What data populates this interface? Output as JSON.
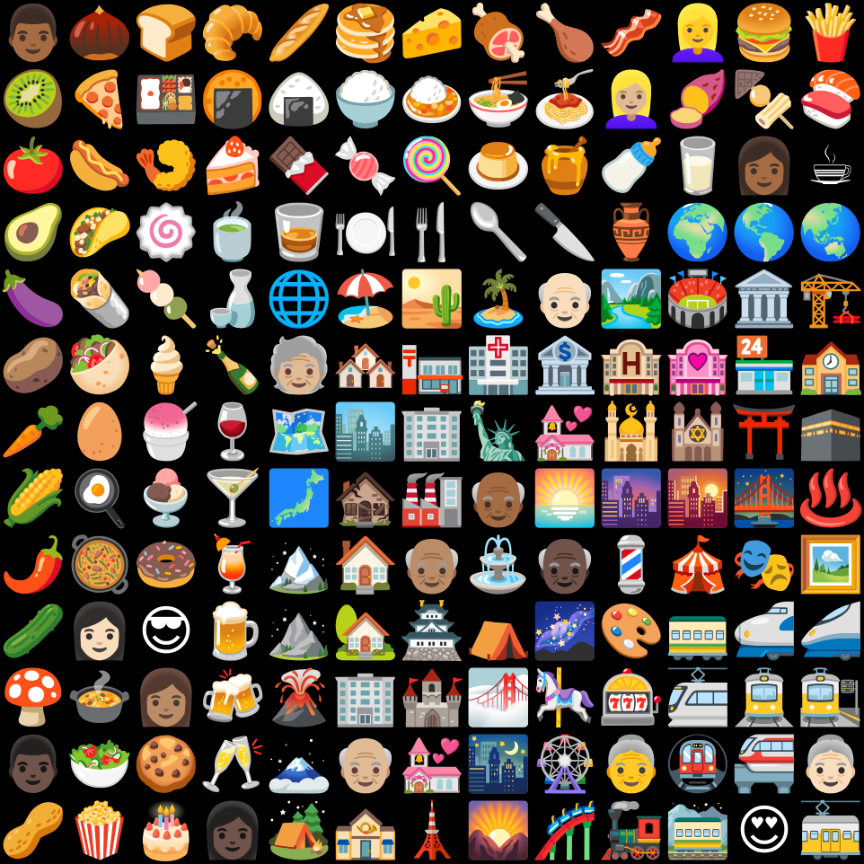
{
  "grid": {
    "columns": 13,
    "rows": 13,
    "background": "#000000",
    "cells": [
      {
        "icon": "man-medium-dark-skin-tone",
        "glyph": "👨🏾"
      },
      {
        "icon": "chestnut",
        "glyph": "🌰"
      },
      {
        "icon": "bread",
        "glyph": "🍞"
      },
      {
        "icon": "croissant",
        "glyph": "🥐"
      },
      {
        "icon": "baguette-bread",
        "glyph": "🥖"
      },
      {
        "icon": "pancakes",
        "glyph": "🥞"
      },
      {
        "icon": "cheese-wedge",
        "glyph": "🧀"
      },
      {
        "icon": "meat-on-bone",
        "glyph": "🍖"
      },
      {
        "icon": "poultry-leg",
        "glyph": "🍗"
      },
      {
        "icon": "bacon",
        "glyph": "🥓"
      },
      {
        "icon": "woman-blond-hair",
        "glyph": "👱‍♀️"
      },
      {
        "icon": "hamburger",
        "glyph": "🍔"
      },
      {
        "icon": "french-fries",
        "glyph": "🍟"
      },
      {
        "icon": "kiwi-fruit",
        "glyph": "🥝"
      },
      {
        "icon": "pizza",
        "glyph": "🍕"
      },
      {
        "icon": "bento-box",
        "glyph": "🍱"
      },
      {
        "icon": "rice-cracker",
        "glyph": "🍘"
      },
      {
        "icon": "rice-ball",
        "glyph": "🍙"
      },
      {
        "icon": "cooked-rice",
        "glyph": "🍚"
      },
      {
        "icon": "curry-rice",
        "glyph": "🍛"
      },
      {
        "icon": "steaming-bowl",
        "glyph": "🍜"
      },
      {
        "icon": "spaghetti",
        "glyph": "🍝"
      },
      {
        "icon": "person-blond-hair-light-skin-tone",
        "glyph": "👱🏼‍♀️"
      },
      {
        "icon": "roasted-sweet-potato",
        "glyph": "🍠"
      },
      {
        "icon": "oden",
        "glyph": "🍢"
      },
      {
        "icon": "sushi",
        "glyph": "🍣"
      },
      {
        "icon": "tomato",
        "glyph": "🍅"
      },
      {
        "icon": "hot-dog",
        "glyph": "🌭"
      },
      {
        "icon": "fried-shrimp",
        "glyph": "🍤"
      },
      {
        "icon": "shortcake",
        "glyph": "🍰"
      },
      {
        "icon": "chocolate-bar",
        "glyph": "🍫"
      },
      {
        "icon": "candy",
        "glyph": "🍬"
      },
      {
        "icon": "lollipop",
        "glyph": "🍭"
      },
      {
        "icon": "custard",
        "glyph": "🍮"
      },
      {
        "icon": "honey-pot",
        "glyph": "🍯"
      },
      {
        "icon": "baby-bottle",
        "glyph": "🍼"
      },
      {
        "icon": "glass-of-milk",
        "glyph": "🥛"
      },
      {
        "icon": "woman-medium-dark-skin-tone",
        "glyph": "👩🏾"
      },
      {
        "icon": "hot-beverage",
        "glyph": "☕"
      },
      {
        "icon": "avocado",
        "glyph": "🥑"
      },
      {
        "icon": "taco",
        "glyph": "🌮"
      },
      {
        "icon": "fish-cake",
        "glyph": "🍥"
      },
      {
        "icon": "teacup-without-handle",
        "glyph": "🍵"
      },
      {
        "icon": "tumbler-glass",
        "glyph": "🥃"
      },
      {
        "icon": "fork-and-knife-with-plate",
        "glyph": "🍽️"
      },
      {
        "icon": "fork-and-knife",
        "glyph": "🍴"
      },
      {
        "icon": "spoon",
        "glyph": "🥄"
      },
      {
        "icon": "kitchen-knife",
        "glyph": "🔪"
      },
      {
        "icon": "amphora",
        "glyph": "🏺"
      },
      {
        "icon": "globe-europe-africa",
        "glyph": "🌍"
      },
      {
        "icon": "globe-americas",
        "glyph": "🌎"
      },
      {
        "icon": "globe-asia-australia",
        "glyph": "🌏"
      },
      {
        "icon": "eggplant",
        "glyph": "🍆"
      },
      {
        "icon": "burrito",
        "glyph": "🌯"
      },
      {
        "icon": "dango",
        "glyph": "🍡"
      },
      {
        "icon": "sake",
        "glyph": "🍶"
      },
      {
        "icon": "globe-with-meridians",
        "glyph": "🌐"
      },
      {
        "icon": "beach-with-umbrella",
        "glyph": "🏖️"
      },
      {
        "icon": "desert",
        "glyph": "🏜️"
      },
      {
        "icon": "desert-island",
        "glyph": "🏝️"
      },
      {
        "icon": "old-man-light-skin-tone",
        "glyph": "👴🏻"
      },
      {
        "icon": "national-park",
        "glyph": "🏞️"
      },
      {
        "icon": "stadium",
        "glyph": "🏟️"
      },
      {
        "icon": "classical-building",
        "glyph": "🏛️"
      },
      {
        "icon": "building-construction",
        "glyph": "🏗️"
      },
      {
        "icon": "potato",
        "glyph": "🥔"
      },
      {
        "icon": "stuffed-flatbread",
        "glyph": "🥙"
      },
      {
        "icon": "soft-ice-cream",
        "glyph": "🍦"
      },
      {
        "icon": "bottle-with-popping-cork",
        "glyph": "🍾"
      },
      {
        "icon": "older-person-medium-light-skin-tone",
        "glyph": "🧓🏼"
      },
      {
        "icon": "houses",
        "glyph": "🏘️"
      },
      {
        "icon": "japanese-post-office",
        "glyph": "🏣"
      },
      {
        "icon": "hospital",
        "glyph": "🏥"
      },
      {
        "icon": "bank",
        "glyph": "🏦"
      },
      {
        "icon": "hotel",
        "glyph": "🏨"
      },
      {
        "icon": "love-hotel",
        "glyph": "🏩"
      },
      {
        "icon": "convenience-store",
        "glyph": "🏪"
      },
      {
        "icon": "school",
        "glyph": "🏫"
      },
      {
        "icon": "carrot",
        "glyph": "🥕"
      },
      {
        "icon": "egg",
        "glyph": "🥚"
      },
      {
        "icon": "shaved-ice",
        "glyph": "🍧"
      },
      {
        "icon": "wine-glass",
        "glyph": "🍷"
      },
      {
        "icon": "world-map",
        "glyph": "🗺️"
      },
      {
        "icon": "cityscape",
        "glyph": "🏙️"
      },
      {
        "icon": "office-building",
        "glyph": "🏢"
      },
      {
        "icon": "statue-of-liberty",
        "glyph": "🗽"
      },
      {
        "icon": "wedding",
        "glyph": "💒"
      },
      {
        "icon": "mosque",
        "glyph": "🕌"
      },
      {
        "icon": "synagogue",
        "glyph": "🕍"
      },
      {
        "icon": "shinto-shrine",
        "glyph": "⛩️"
      },
      {
        "icon": "kaaba",
        "glyph": "🕋"
      },
      {
        "icon": "ear-of-corn",
        "glyph": "🌽"
      },
      {
        "icon": "cooking",
        "glyph": "🍳"
      },
      {
        "icon": "ice-cream",
        "glyph": "🍨"
      },
      {
        "icon": "cocktail-glass",
        "glyph": "🍸"
      },
      {
        "icon": "map-of-japan",
        "glyph": "🗾"
      },
      {
        "icon": "derelict-house",
        "glyph": "🏚️"
      },
      {
        "icon": "factory",
        "glyph": "🏭"
      },
      {
        "icon": "old-man-dark-skin-tone",
        "glyph": "👴🏾"
      },
      {
        "icon": "sunrise",
        "glyph": "🌅"
      },
      {
        "icon": "cityscape-at-dusk",
        "glyph": "🌆"
      },
      {
        "icon": "sunset",
        "glyph": "🌇"
      },
      {
        "icon": "bridge-at-night",
        "glyph": "🌉"
      },
      {
        "icon": "hot-springs",
        "glyph": "♨️"
      },
      {
        "icon": "hot-pepper",
        "glyph": "🌶️"
      },
      {
        "icon": "shallow-pan-of-food",
        "glyph": "🥘"
      },
      {
        "icon": "doughnut",
        "glyph": "🍩"
      },
      {
        "icon": "tropical-drink",
        "glyph": "🍹"
      },
      {
        "icon": "snow-capped-mountain",
        "glyph": "🏔️"
      },
      {
        "icon": "house",
        "glyph": "🏠"
      },
      {
        "icon": "old-man-medium-skin-tone",
        "glyph": "👴🏽"
      },
      {
        "icon": "fountain",
        "glyph": "⛲"
      },
      {
        "icon": "old-man-dark-skin-tone-2",
        "glyph": "👴🏿"
      },
      {
        "icon": "barber-pole",
        "glyph": "💈"
      },
      {
        "icon": "circus-tent",
        "glyph": "🎪"
      },
      {
        "icon": "performing-arts",
        "glyph": "🎭"
      },
      {
        "icon": "framed-picture",
        "glyph": "🖼️"
      },
      {
        "icon": "cucumber",
        "glyph": "🥒"
      },
      {
        "icon": "woman-light-skin-tone",
        "glyph": "👩🏻"
      },
      {
        "icon": "smiling-face-with-sunglasses",
        "glyph": "😎"
      },
      {
        "icon": "beer-mug",
        "glyph": "🍺"
      },
      {
        "icon": "mountain",
        "glyph": "⛰️"
      },
      {
        "icon": "house-with-garden",
        "glyph": "🏡"
      },
      {
        "icon": "japanese-castle",
        "glyph": "🏯"
      },
      {
        "icon": "tent",
        "glyph": "⛺"
      },
      {
        "icon": "milky-way",
        "glyph": "🌌"
      },
      {
        "icon": "artist-palette",
        "glyph": "🎨"
      },
      {
        "icon": "railway-car",
        "glyph": "🚃"
      },
      {
        "icon": "bullet-train",
        "glyph": "🚅"
      },
      {
        "icon": "high-speed-train",
        "glyph": "🚄"
      },
      {
        "icon": "mushroom",
        "glyph": "🍄"
      },
      {
        "icon": "pot-of-food",
        "glyph": "🍲"
      },
      {
        "icon": "woman-medium-skin-tone",
        "glyph": "👩🏽"
      },
      {
        "icon": "clinking-beer-mugs",
        "glyph": "🍻"
      },
      {
        "icon": "volcano",
        "glyph": "🌋"
      },
      {
        "icon": "office-building-2",
        "glyph": "🏢"
      },
      {
        "icon": "european-castle",
        "glyph": "🏰"
      },
      {
        "icon": "foggy",
        "glyph": "🌁"
      },
      {
        "icon": "carousel-horse",
        "glyph": "🎠"
      },
      {
        "icon": "slot-machine",
        "glyph": "🎰"
      },
      {
        "icon": "light-rail",
        "glyph": "🚈"
      },
      {
        "icon": "tram",
        "glyph": "🚊"
      },
      {
        "icon": "station",
        "glyph": "🚉"
      },
      {
        "icon": "man-dark-skin-tone",
        "glyph": "👨🏿"
      },
      {
        "icon": "green-salad",
        "glyph": "🥗"
      },
      {
        "icon": "cookie",
        "glyph": "🍪"
      },
      {
        "icon": "clinking-glasses",
        "glyph": "🥂"
      },
      {
        "icon": "mount-fuji",
        "glyph": "🗻"
      },
      {
        "icon": "old-man-light-skin-tone-2",
        "glyph": "👴🏼"
      },
      {
        "icon": "wedding-chapel",
        "glyph": "💒"
      },
      {
        "icon": "night-with-stars",
        "glyph": "🌃"
      },
      {
        "icon": "ferris-wheel",
        "glyph": "🎡"
      },
      {
        "icon": "old-woman",
        "glyph": "👵"
      },
      {
        "icon": "metro",
        "glyph": "🚇"
      },
      {
        "icon": "monorail",
        "glyph": "🚝"
      },
      {
        "icon": "old-woman-light-skin-tone",
        "glyph": "👵🏻"
      },
      {
        "icon": "peanuts",
        "glyph": "🥜"
      },
      {
        "icon": "popcorn",
        "glyph": "🍿"
      },
      {
        "icon": "birthday-cake",
        "glyph": "🎂"
      },
      {
        "icon": "woman-dark-skin-tone",
        "glyph": "👩🏿"
      },
      {
        "icon": "camping",
        "glyph": "🏕️"
      },
      {
        "icon": "post-office",
        "glyph": "🏤"
      },
      {
        "icon": "tokyo-tower",
        "glyph": "🗼"
      },
      {
        "icon": "sunrise-over-mountains",
        "glyph": "🌄"
      },
      {
        "icon": "roller-coaster",
        "glyph": "🎢"
      },
      {
        "icon": "locomotive",
        "glyph": "🚂"
      },
      {
        "icon": "mountain-railway",
        "glyph": "🚞"
      },
      {
        "icon": "smiling-face-with-heart-eyes",
        "glyph": "😍"
      },
      {
        "icon": "tram-car",
        "glyph": "🚋"
      }
    ]
  }
}
